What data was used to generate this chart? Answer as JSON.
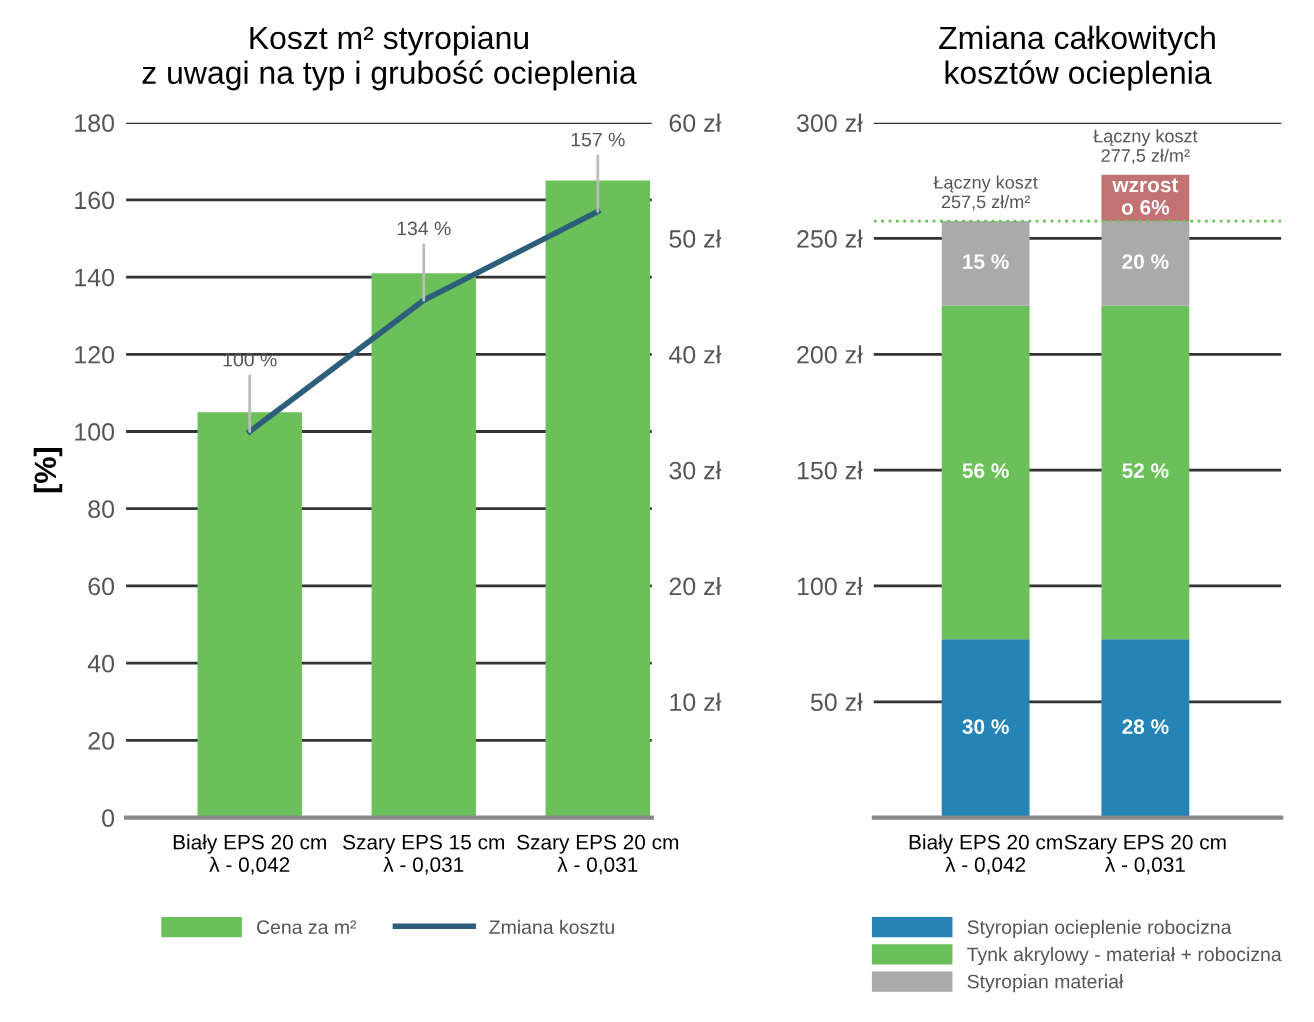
{
  "chart_data": [
    {
      "type": "bar",
      "title": "Koszt m² styropianu\nz uwagi na typ i grubość ocieplenia",
      "ylabel": "[%]",
      "categories": [
        "Biały EPS 20 cm\nλ - 0,042",
        "Szary EPS 15 cm\nλ - 0,031",
        "Szary EPS 20 cm\nλ - 0,031"
      ],
      "series": [
        {
          "name": "Cena za m²",
          "type": "bar",
          "color": "#6cc05a",
          "values": [
            105,
            141,
            165
          ]
        },
        {
          "name": "Zmiana kosztu",
          "type": "line",
          "color": "#2d5f7a",
          "values": [
            100,
            134,
            157
          ],
          "value_labels": [
            "100 %",
            "134 %",
            "157 %"
          ]
        }
      ],
      "ylim": [
        0,
        180
      ],
      "yticks": [
        0,
        20,
        40,
        60,
        80,
        100,
        120,
        140,
        160,
        180
      ],
      "y2lim": [
        0,
        60
      ],
      "y2ticks": [
        {
          "value": 10,
          "label": "10 zł"
        },
        {
          "value": 20,
          "label": "20 zł"
        },
        {
          "value": 30,
          "label": "30 zł"
        },
        {
          "value": 40,
          "label": "40 zł"
        },
        {
          "value": 50,
          "label": "50 zł"
        },
        {
          "value": 60,
          "label": "60 zł"
        }
      ],
      "grid": "y",
      "legend": "bottom",
      "marker": "none",
      "line_style": "solid"
    },
    {
      "type": "bar",
      "title": "Zmiana całkowitych\nkosztów ocieplenia",
      "stacked": true,
      "categories": [
        "Biały EPS 20 cm\nλ - 0,042",
        "Szary EPS 20 cm\nλ - 0,031"
      ],
      "series": [
        {
          "name": "Styropian ocieplenie robocizna",
          "color": "#2583b5",
          "values": [
            77,
            77
          ]
        },
        {
          "name": "Tynk akrylowy - materiał + robocizna",
          "color": "#6cc05a",
          "values": [
            144,
            144
          ]
        },
        {
          "name": "Styropian materiał",
          "color": "#aaaaaa",
          "values": [
            36.5,
            36.5
          ]
        },
        {
          "color": "#c27272",
          "values": [
            null,
            20
          ]
        }
      ],
      "totals": [
        "Łączny koszt\n257,5 zł/m²",
        "Łączny koszt\n277,5 zł/m²"
      ],
      "ref_lines": [
        {
          "axis": "y",
          "value": 257.5,
          "color": "#6cc05a",
          "line_style": "dotted"
        }
      ],
      "annotations": [
        "30 %",
        "28 %",
        "56 %",
        "52 %",
        "15 %",
        "20 %",
        "wzrost\no 6%"
      ],
      "ylim": [
        0,
        300
      ],
      "yticks": [
        {
          "value": 0,
          "label": null
        },
        {
          "value": 50,
          "label": "50 zł"
        },
        {
          "value": 100,
          "label": "100 zł"
        },
        {
          "value": 150,
          "label": "150 zł"
        },
        {
          "value": 200,
          "label": "200 zł"
        },
        {
          "value": 250,
          "label": "250 zł"
        },
        {
          "value": 300,
          "label": "300 zł"
        }
      ],
      "grid": "y",
      "legend": "bottom"
    }
  ]
}
